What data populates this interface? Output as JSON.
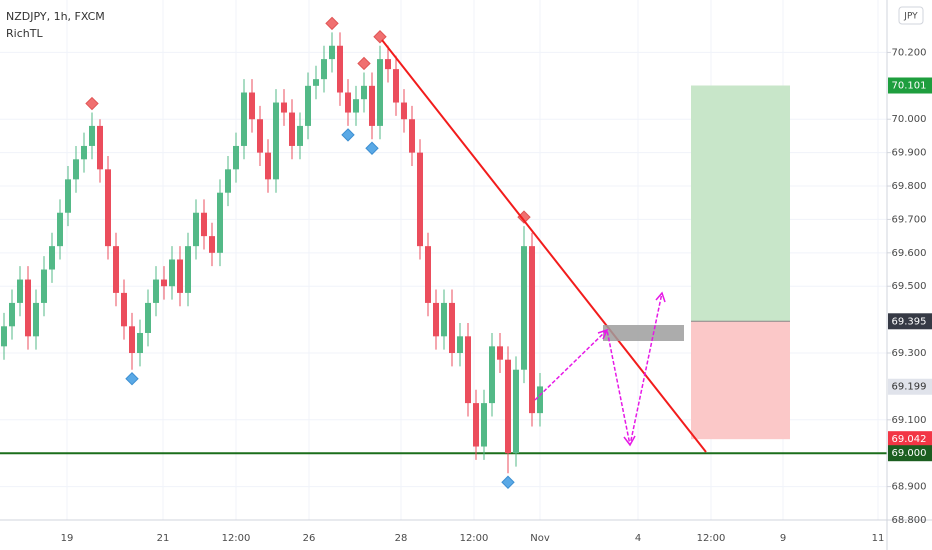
{
  "chart_data": {
    "type": "candlestick",
    "title": "NZDJPY, 1h, FXCM",
    "subtitle": "RichTL",
    "currency": "JPY",
    "up_color": "#53b987",
    "down_color": "#eb4d5c",
    "grid": true,
    "ylim": [
      68.8,
      70.357
    ],
    "yticks": [
      {
        "value": 70.2,
        "label": "70.200"
      },
      {
        "value": 70.0,
        "label": "70.000"
      },
      {
        "value": 69.9,
        "label": "69.900"
      },
      {
        "value": 69.8,
        "label": "69.800"
      },
      {
        "value": 69.7,
        "label": "69.700"
      },
      {
        "value": 69.6,
        "label": "69.600"
      },
      {
        "value": 69.5,
        "label": "69.500"
      },
      {
        "value": 69.3,
        "label": "69.300"
      },
      {
        "value": 69.1,
        "label": "69.100"
      },
      {
        "value": 68.9,
        "label": "68.900"
      },
      {
        "value": 68.8,
        "label": "68.800"
      }
    ],
    "time_labels": [
      "19",
      "21",
      "12:00",
      "26",
      "28",
      "12:00",
      "Nov",
      "4",
      "12:00",
      "9",
      "11"
    ],
    "open": [
      69.32,
      69.38,
      69.45,
      69.52,
      69.35,
      69.45,
      69.55,
      69.62,
      69.72,
      69.82,
      69.88,
      69.92,
      69.98,
      69.85,
      69.62,
      69.48,
      69.38,
      69.3,
      69.36,
      69.45,
      69.52,
      69.5,
      69.58,
      69.48,
      69.62,
      69.72,
      69.65,
      69.6,
      69.78,
      69.85,
      69.92,
      70.08,
      70.0,
      69.9,
      69.82,
      70.05,
      70.02,
      69.92,
      69.98,
      70.1,
      70.12,
      70.18,
      70.22,
      70.08,
      70.02,
      70.06,
      70.1,
      69.98,
      70.18,
      70.15,
      70.05,
      70.0,
      69.9,
      69.62,
      69.45,
      69.35,
      69.45,
      69.3,
      69.35,
      69.15,
      69.02,
      69.15,
      69.32,
      69.28,
      69.0,
      69.25,
      69.62,
      69.12
    ],
    "high": [
      69.42,
      69.49,
      69.56,
      69.56,
      69.49,
      69.59,
      69.66,
      69.76,
      69.86,
      69.92,
      69.96,
      70.02,
      70.0,
      69.89,
      69.66,
      69.52,
      69.42,
      69.4,
      69.49,
      69.56,
      69.56,
      69.62,
      69.62,
      69.66,
      69.76,
      69.76,
      69.69,
      69.82,
      69.89,
      69.96,
      70.12,
      70.12,
      70.04,
      69.94,
      70.09,
      70.09,
      70.06,
      70.02,
      70.14,
      70.16,
      70.22,
      70.26,
      70.26,
      70.12,
      70.1,
      70.14,
      70.14,
      70.22,
      70.22,
      70.19,
      70.09,
      70.04,
      69.94,
      69.66,
      69.49,
      69.49,
      69.49,
      69.39,
      69.39,
      69.19,
      69.19,
      69.36,
      69.36,
      69.32,
      69.29,
      69.68,
      69.66,
      69.24
    ],
    "low": [
      69.28,
      69.34,
      69.41,
      69.31,
      69.31,
      69.41,
      69.51,
      69.58,
      69.68,
      69.78,
      69.84,
      69.88,
      69.81,
      69.58,
      69.44,
      69.34,
      69.25,
      69.26,
      69.32,
      69.41,
      69.46,
      69.46,
      69.44,
      69.44,
      69.58,
      69.61,
      69.56,
      69.56,
      69.74,
      69.81,
      69.88,
      69.96,
      69.86,
      69.78,
      69.78,
      69.98,
      69.88,
      69.88,
      69.94,
      70.06,
      70.08,
      70.14,
      70.04,
      69.98,
      69.98,
      70.02,
      69.94,
      69.94,
      70.11,
      70.01,
      69.96,
      69.86,
      69.58,
      69.41,
      69.31,
      69.31,
      69.26,
      69.26,
      69.11,
      68.98,
      68.98,
      69.11,
      69.24,
      68.94,
      68.96,
      69.21,
      69.08,
      69.08
    ],
    "close": [
      69.38,
      69.45,
      69.52,
      69.35,
      69.45,
      69.55,
      69.62,
      69.72,
      69.82,
      69.88,
      69.92,
      69.98,
      69.85,
      69.62,
      69.48,
      69.38,
      69.3,
      69.36,
      69.45,
      69.52,
      69.5,
      69.58,
      69.48,
      69.62,
      69.72,
      69.65,
      69.6,
      69.78,
      69.85,
      69.92,
      70.08,
      70.0,
      69.9,
      69.82,
      70.05,
      70.02,
      69.92,
      69.98,
      70.1,
      70.12,
      70.18,
      70.22,
      70.08,
      70.02,
      70.06,
      70.1,
      69.98,
      70.18,
      70.15,
      70.05,
      70.0,
      69.9,
      69.62,
      69.45,
      69.35,
      69.45,
      69.3,
      69.35,
      69.15,
      69.02,
      69.15,
      69.32,
      69.28,
      69.0,
      69.25,
      69.62,
      69.12,
      69.2
    ],
    "pivot_highs": [
      11,
      41,
      45,
      47,
      65
    ],
    "pivot_lows": [
      16,
      43,
      46,
      63
    ],
    "levels": [
      {
        "value": 70.101,
        "color": "#1e9e3e"
      },
      {
        "value": 69.395,
        "color": "#363a45"
      },
      {
        "value": 69.199,
        "color": "#e0e3eb"
      },
      {
        "value": 69.042,
        "color": "#f23645"
      },
      {
        "value": 69.0,
        "label": "69.000",
        "color": "#1b5e20"
      }
    ]
  }
}
